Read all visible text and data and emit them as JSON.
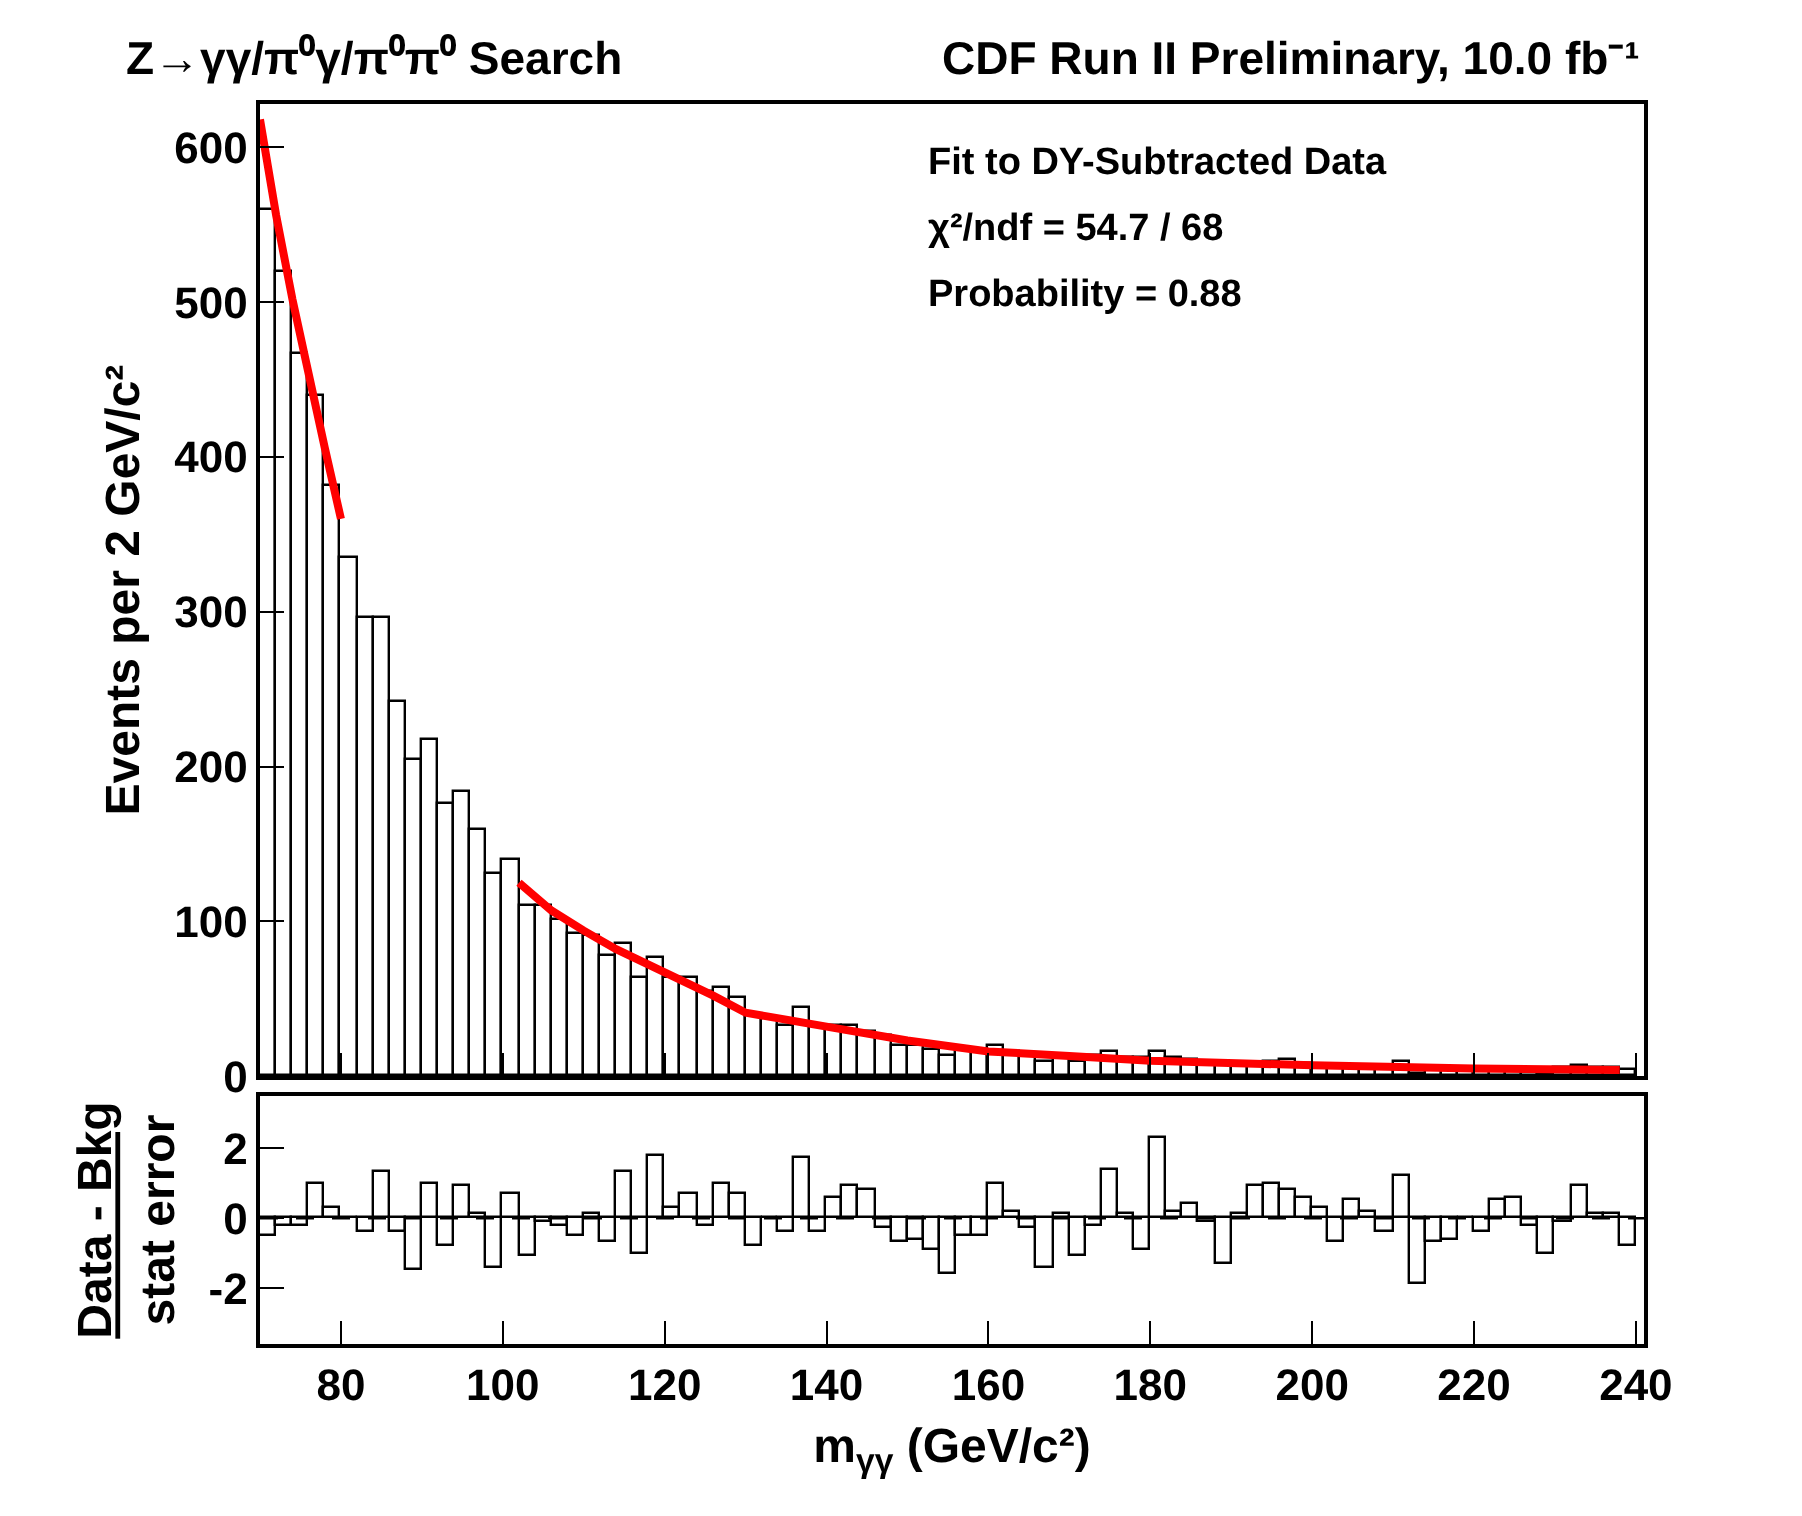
{
  "chart_data": [
    {
      "type": "histogram",
      "title": "Z→γγ/π⁰γ/π⁰π⁰ Search",
      "subtitle": "CDF Run II Preliminary, 10.0 fb⁻¹",
      "ylabel": "Events per 2 GeV/c²",
      "annotations": [
        "Fit to DY-Subtracted Data",
        "χ²/ndf = 54.7 / 68",
        "Probability = 0.88"
      ],
      "bins": [
        70,
        72,
        74,
        76,
        78,
        80,
        82,
        84,
        86,
        88,
        90,
        92,
        94,
        96,
        98,
        100,
        102,
        104,
        106,
        108,
        110,
        112,
        114,
        116,
        118,
        120,
        122,
        124,
        126,
        128,
        130,
        132,
        134,
        136,
        138,
        140,
        142,
        144,
        146,
        148,
        150,
        152,
        154,
        156,
        158,
        160,
        162,
        164,
        166,
        168,
        170,
        172,
        174,
        176,
        178,
        180,
        182,
        184,
        186,
        188,
        190,
        192,
        194,
        196,
        198,
        200,
        202,
        204,
        206,
        208,
        210,
        212,
        214,
        216,
        218,
        220,
        222,
        224,
        226,
        228,
        230,
        232,
        234,
        236,
        238,
        240
      ],
      "series": [
        {
          "color": "#000000",
          "values": [
            560,
            520,
            466,
            440,
            381,
            335,
            296,
            296,
            242,
            204,
            217,
            176,
            183,
            159,
            130,
            140,
            110,
            110,
            101,
            92,
            91,
            77,
            86,
            63,
            76,
            64,
            63,
            55,
            57,
            50,
            39,
            38,
            33,
            44,
            33,
            33,
            33,
            29,
            26,
            19,
            19,
            17,
            13,
            17,
            17,
            19,
            16,
            14,
            9,
            13,
            9,
            13,
            16,
            12,
            12,
            16,
            12,
            11,
            8,
            6,
            8,
            8,
            9,
            10,
            8,
            7,
            7,
            6,
            6,
            7,
            9,
            2,
            5,
            5,
            5,
            5,
            5,
            4,
            4,
            2,
            5,
            7,
            5,
            5,
            4
          ]
        },
        {
          "type": "line",
          "color": "#ff0000",
          "x": [
            70,
            72,
            74,
            76,
            78,
            80
          ],
          "values": [
            618,
            556,
            502,
            454,
            406,
            360
          ]
        },
        {
          "type": "line",
          "color": "#ff0000",
          "x": [
            102,
            106,
            110,
            114,
            120,
            126,
            130,
            140,
            150,
            160,
            170,
            180,
            200,
            220,
            238
          ],
          "values": [
            125,
            107,
            94,
            82,
            67,
            52,
            41,
            32,
            23,
            16,
            13,
            10,
            7,
            5,
            4
          ]
        }
      ],
      "xlim": [
        70,
        241
      ],
      "xticks": [
        80,
        100,
        120,
        140,
        160,
        180,
        200,
        220,
        240
      ],
      "ylim": [
        0,
        628
      ],
      "yticks": [
        0,
        100,
        200,
        300,
        400,
        500,
        600
      ],
      "tick_labels": "y"
    },
    {
      "type": "histogram",
      "xlabel": "m$_{γγ}$ (GeV/c²)",
      "ylabel": "Data - Bkg\nstat error",
      "bins": [
        70,
        72,
        74,
        76,
        78,
        80,
        82,
        84,
        86,
        88,
        90,
        92,
        94,
        96,
        98,
        100,
        102,
        104,
        106,
        108,
        110,
        112,
        114,
        116,
        118,
        120,
        122,
        124,
        126,
        128,
        130,
        132,
        134,
        136,
        138,
        140,
        142,
        144,
        146,
        148,
        150,
        152,
        154,
        156,
        158,
        160,
        162,
        164,
        166,
        168,
        170,
        172,
        174,
        176,
        178,
        180,
        182,
        184,
        186,
        188,
        190,
        192,
        194,
        196,
        198,
        200,
        202,
        204,
        206,
        208,
        210,
        212,
        214,
        216,
        218,
        220,
        222,
        224,
        226,
        228,
        230,
        232,
        234,
        236,
        238,
        240
      ],
      "series": [
        {
          "color": "#000000",
          "values": [
            -0.5,
            -0.2,
            -0.2,
            1.0,
            0.3,
            0.0,
            -0.4,
            1.3,
            -0.4,
            -1.5,
            1.0,
            -0.8,
            0.9,
            0.1,
            -1.4,
            0.7,
            -1.1,
            -0.1,
            -0.2,
            -0.5,
            0.1,
            -0.7,
            1.3,
            -1.0,
            1.8,
            0.3,
            0.7,
            -0.2,
            1.0,
            0.7,
            -0.8,
            0.0,
            -0.4,
            1.7,
            -0.4,
            0.6,
            0.9,
            0.8,
            -0.3,
            -0.7,
            -0.6,
            -0.9,
            -1.6,
            -0.5,
            -0.5,
            1.0,
            0.2,
            -0.3,
            -1.4,
            0.1,
            -1.1,
            -0.2,
            1.4,
            0.1,
            -0.9,
            2.3,
            0.2,
            0.4,
            -0.1,
            -1.3,
            0.1,
            0.9,
            1.0,
            0.8,
            0.6,
            0.3,
            -0.7,
            0.5,
            0.2,
            -0.4,
            1.2,
            -1.9,
            -0.7,
            -0.6,
            0.0,
            -0.4,
            0.5,
            0.6,
            -0.2,
            -1.0,
            -0.1,
            0.9,
            0.1,
            0.1,
            -0.8
          ]
        }
      ],
      "ref_lines": [
        {
          "axis": "y",
          "value": 0,
          "color": "#000000",
          "line_style": "dashed"
        }
      ],
      "xlim": [
        70,
        241
      ],
      "xticks": [
        80,
        100,
        120,
        140,
        160,
        180,
        200,
        220,
        240
      ],
      "ylim": [
        -3.6,
        3.5
      ],
      "yticks": [
        -2,
        0,
        2
      ]
    }
  ]
}
